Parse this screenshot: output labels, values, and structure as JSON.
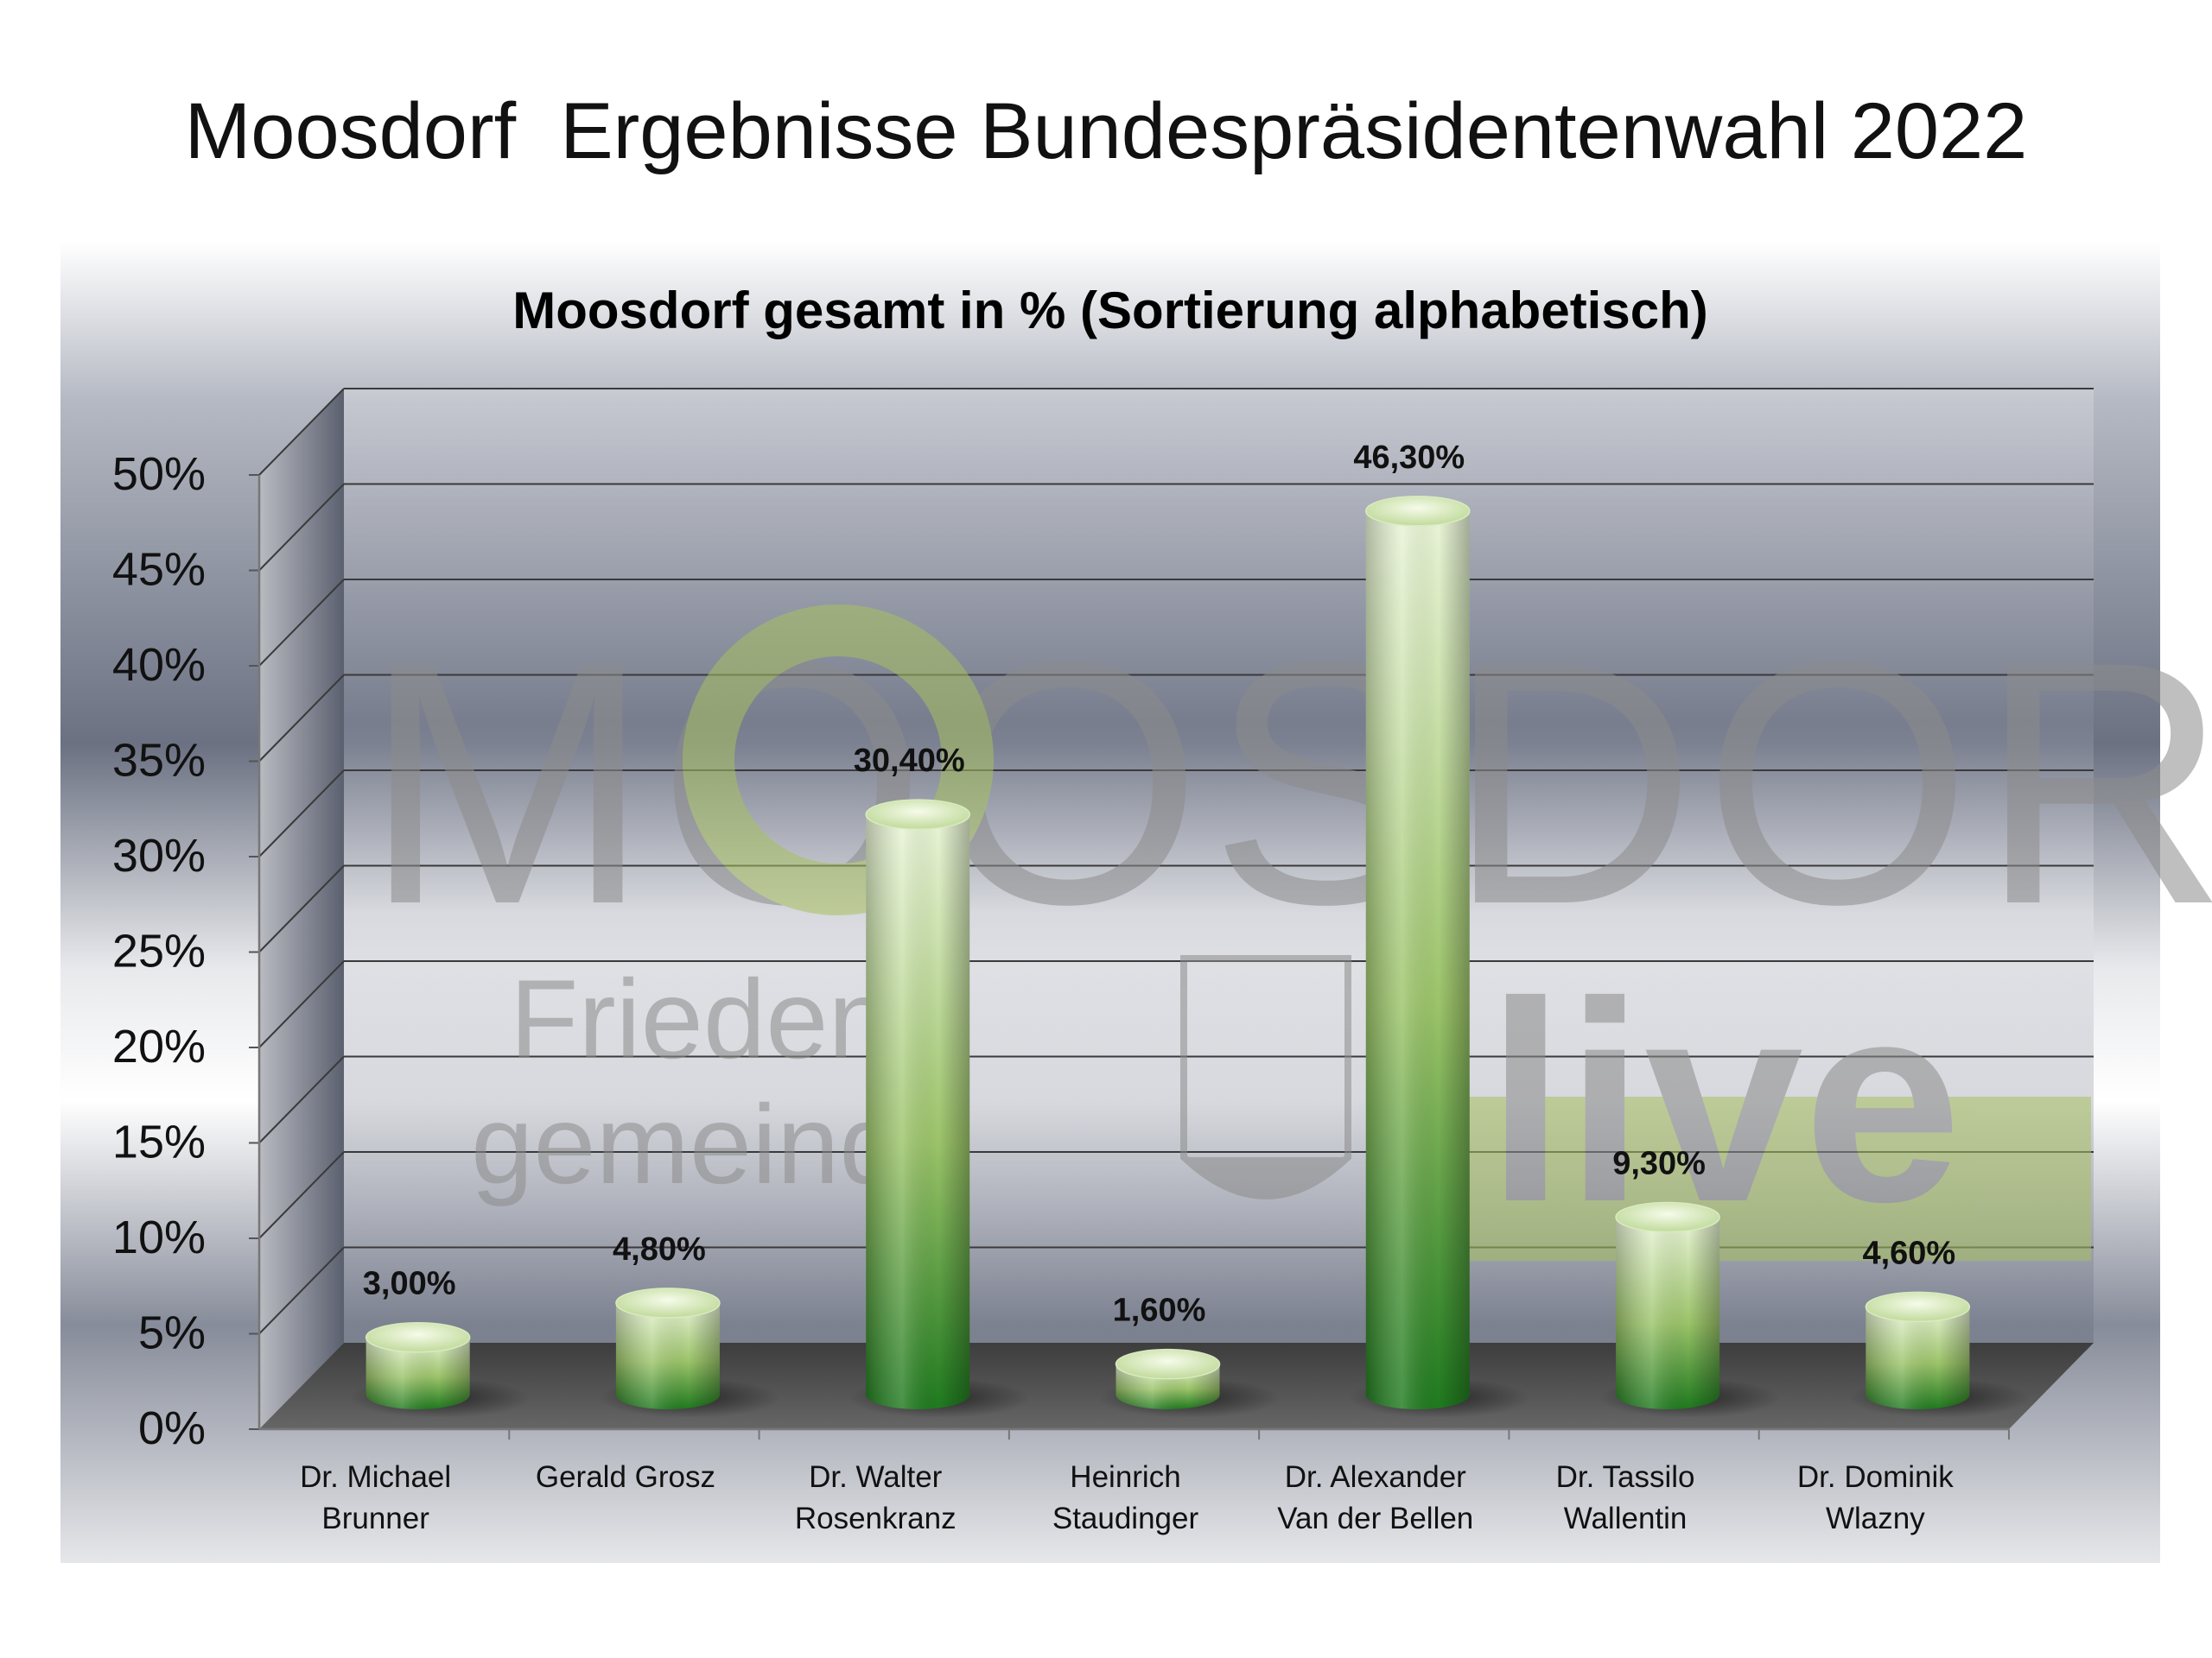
{
  "page": {
    "title": "Moosdorf  Ergebnisse Bundespräsidentenwahl 2022"
  },
  "watermark": {
    "logo_text": "MOOSDORF",
    "sub_line1": "Frieden",
    "sub_line2": "gemeinde",
    "live_text": "live"
  },
  "colors": {
    "bar_dark": "#1f7a1f",
    "bar_mid": "#9cc46a",
    "bar_light": "#eaf5d8",
    "logo_green": "#a8c060",
    "logo_grey": "#8c8c8c"
  },
  "chart_data": {
    "type": "bar",
    "title": "Moosdorf gesamt in % (Sortierung alphabetisch)",
    "categories": [
      [
        "Dr. Michael",
        "Brunner"
      ],
      [
        "Gerald Grosz"
      ],
      [
        "Dr. Walter",
        "Rosenkranz"
      ],
      [
        "Heinrich",
        "Staudinger"
      ],
      [
        "Dr. Alexander",
        "Van der Bellen"
      ],
      [
        "Dr. Tassilo",
        "Wallentin"
      ],
      [
        "Dr. Dominik",
        "Wlazny"
      ]
    ],
    "values": [
      3.0,
      4.8,
      30.4,
      1.6,
      46.3,
      9.3,
      4.6
    ],
    "value_labels": [
      "3,00%",
      "4,80%",
      "30,40%",
      "1,60%",
      "46,30%",
      "9,30%",
      "4,60%"
    ],
    "ylim": [
      0,
      50
    ],
    "yticks": [
      0,
      5,
      10,
      15,
      20,
      25,
      30,
      35,
      40,
      45,
      50
    ],
    "ytick_labels": [
      "0%",
      "5%",
      "10%",
      "15%",
      "20%",
      "25%",
      "30%",
      "35%",
      "40%",
      "45%",
      "50%"
    ],
    "grid": true,
    "legend": "none",
    "style": "3d-cylinder"
  }
}
